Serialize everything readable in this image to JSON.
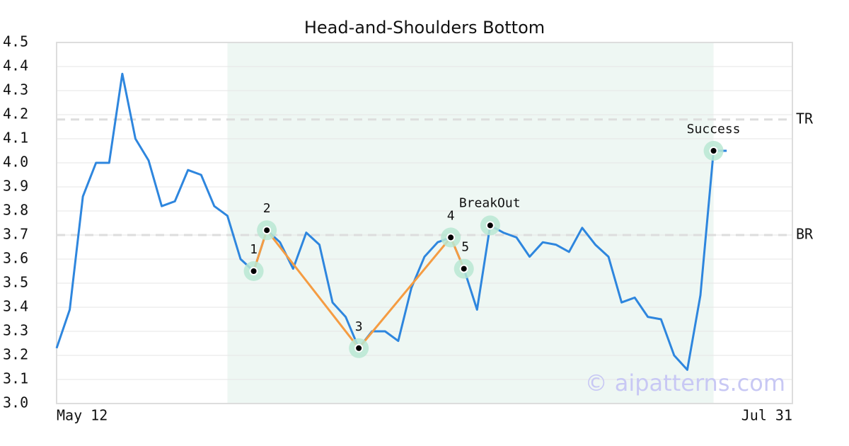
{
  "chart_data": {
    "type": "line",
    "title": "Head-and-Shoulders Bottom",
    "watermark": "© aipatterns.com",
    "xlim": [
      0,
      56
    ],
    "xticks": [
      {
        "value": 0,
        "label": "May 12"
      },
      {
        "value": 56,
        "label": "Jul 31"
      }
    ],
    "ylim": [
      3.0,
      4.5
    ],
    "yticks": [
      {
        "value": 3,
        "label": "3.0"
      },
      3.1,
      3.2,
      3.3,
      3.4,
      3.5,
      3.6,
      3.7,
      3.8,
      3.9,
      {
        "value": 4,
        "label": "4.0"
      },
      4.1,
      4.2,
      4.3,
      4.4,
      4.5
    ],
    "grid": true,
    "highlight_range": [
      13,
      50
    ],
    "highlight_color": "#eef7f3",
    "series": [
      {
        "color": "#2e86de",
        "x": [
          0,
          1,
          2,
          3,
          4,
          5,
          6,
          7,
          8,
          9,
          10,
          11,
          12,
          13,
          14,
          15,
          16,
          17,
          18,
          19,
          20,
          21,
          22,
          23,
          24,
          25,
          26,
          27,
          28,
          29,
          30,
          31,
          32,
          33,
          34,
          35,
          36,
          37,
          38,
          39,
          40,
          41,
          42,
          43,
          44,
          45,
          46,
          47,
          48,
          49,
          50,
          51
        ],
        "values": [
          3.23,
          3.39,
          3.86,
          4.0,
          4.0,
          4.37,
          4.1,
          4.01,
          3.82,
          3.84,
          3.97,
          3.95,
          3.82,
          3.78,
          3.6,
          3.55,
          3.72,
          3.67,
          3.56,
          3.71,
          3.66,
          3.42,
          3.36,
          3.23,
          3.3,
          3.3,
          3.26,
          3.48,
          3.61,
          3.67,
          3.69,
          3.56,
          3.39,
          3.74,
          3.71,
          3.69,
          3.61,
          3.67,
          3.66,
          3.63,
          3.73,
          3.66,
          3.61,
          3.42,
          3.44,
          3.36,
          3.35,
          3.2,
          3.14,
          3.45,
          4.05,
          4.05
        ]
      }
    ],
    "pattern": {
      "color": "#f59c42",
      "points": [
        {
          "label": "1",
          "x": 15,
          "value": 3.55
        },
        {
          "label": "2",
          "x": 16,
          "value": 3.72
        },
        {
          "label": "3",
          "x": 23,
          "value": 3.23
        },
        {
          "label": "4",
          "x": 30,
          "value": 3.69
        },
        {
          "label": "5",
          "x": 31,
          "value": 3.56
        }
      ]
    },
    "markers": [
      {
        "label": "BreakOut",
        "x": 33,
        "value": 3.74
      },
      {
        "label": "Success",
        "x": 50,
        "value": 4.05
      }
    ],
    "marker_color": "#b9e8d2",
    "levels": [
      {
        "label": "TR",
        "value": 4.18
      },
      {
        "label": "BR",
        "value": 3.7
      }
    ]
  }
}
